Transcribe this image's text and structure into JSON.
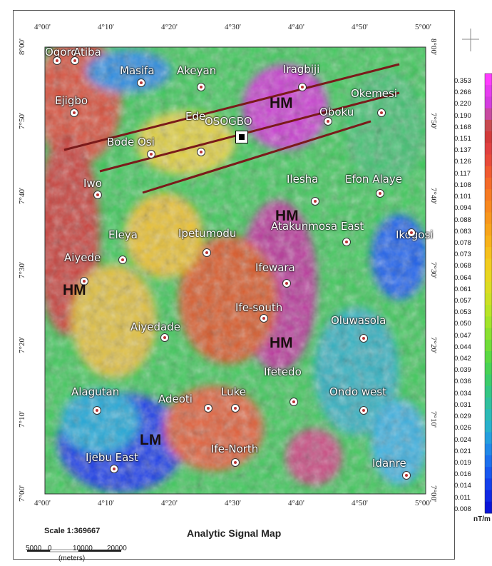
{
  "title": "Analytic Signal Map",
  "scale": {
    "text": "Scale 1:369667",
    "labels": [
      "5000",
      "0",
      "10000",
      "20000"
    ],
    "unit": "(meters)"
  },
  "colorbar": {
    "unit": "nT/m",
    "values": [
      "0.353",
      "0.266",
      "0.220",
      "0.190",
      "0.168",
      "0.151",
      "0.137",
      "0.126",
      "0.117",
      "0.108",
      "0.101",
      "0.094",
      "0.088",
      "0.083",
      "0.078",
      "0.073",
      "0.068",
      "0.064",
      "0.061",
      "0.057",
      "0.053",
      "0.050",
      "0.047",
      "0.044",
      "0.042",
      "0.039",
      "0.036",
      "0.034",
      "0.031",
      "0.029",
      "0.026",
      "0.024",
      "0.021",
      "0.019",
      "0.016",
      "0.014",
      "0.011",
      "0.008"
    ],
    "colors": [
      "#ff3cff",
      "#e63cf0",
      "#d43ce0",
      "#c84aa0",
      "#c84a50",
      "#d23a3a",
      "#e04040",
      "#e84a3a",
      "#f05a30",
      "#f46a28",
      "#f67a22",
      "#f8881e",
      "#f8961c",
      "#f8a41a",
      "#f8b21a",
      "#f6c01c",
      "#f2cc1e",
      "#e8d620",
      "#dcdc22",
      "#cce024",
      "#b8e426",
      "#a2e42a",
      "#8ae030",
      "#70dc38",
      "#5ad842",
      "#48d254",
      "#3ccc6a",
      "#34c684",
      "#30c09e",
      "#2cbab6",
      "#28b0cc",
      "#249ede",
      "#2088e8",
      "#1c70ee",
      "#1858f0",
      "#1440ec",
      "#1028e4",
      "#0a14d8"
    ]
  },
  "axes": {
    "lon_ticks": [
      "4°00'",
      "4°10'",
      "4°20'",
      "4°30'",
      "4°40'",
      "4°50'",
      "5°00'"
    ],
    "lat_ticks_left": [
      "8°00'",
      "7°50'",
      "7°40'",
      "7°30'",
      "7°20'",
      "7°10'",
      "7°00'"
    ],
    "lat_ticks_right": [
      "8°00'",
      "7°50'",
      "7°40'",
      "7°30'",
      "7°20'",
      "7°10'",
      "7°00'"
    ]
  },
  "towns": [
    "Ogoro",
    "Atiba",
    "Masifa",
    "Akeyan",
    "Iragbiji",
    "Ejigbo",
    "Okemesi",
    "Oboku",
    "Ede",
    "Bode Osi",
    "Iwo",
    "Ilesha",
    "Efon Alaye",
    "Ipetumodu",
    "Atakunmosa East",
    "Ikogosi",
    "Eleya",
    "Aiyede",
    "Ifewara",
    "Ife-south",
    "Aiyedade",
    "Oluwasola",
    "Ifetedo",
    "Alagutan",
    "Adeoti",
    "Luke",
    "Ondo west",
    "Ijebu East",
    "Ife-North",
    "Idanre"
  ],
  "osogbo": "OSOGBO",
  "zones": {
    "hm": "HM",
    "lm": "LM"
  }
}
